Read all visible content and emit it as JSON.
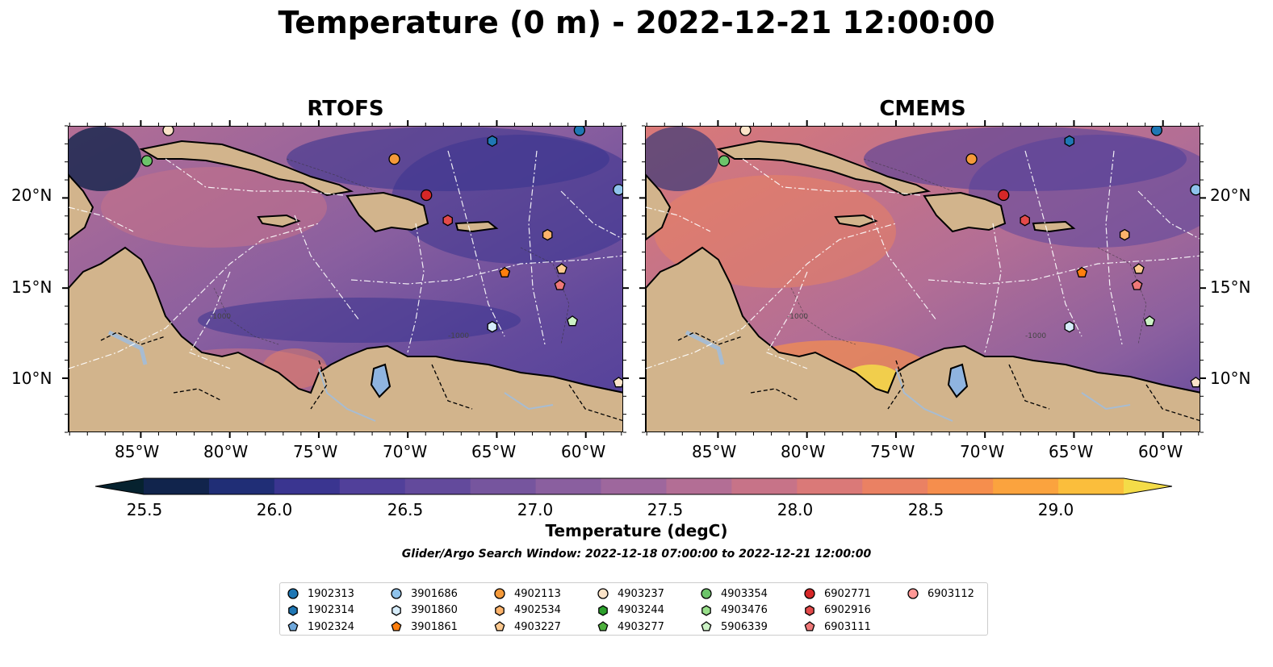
{
  "title": "Temperature (0 m) - 2022-12-21 12:00:00",
  "panels": [
    {
      "title": "RTOFS",
      "variant": "rtofs"
    },
    {
      "title": "CMEMS",
      "variant": "cmems"
    }
  ],
  "lon_ticks": [
    "85°W",
    "80°W",
    "75°W",
    "70°W",
    "65°W",
    "60°W"
  ],
  "lat_ticks": [
    "20°N",
    "15°N",
    "10°N"
  ],
  "colorbar": {
    "label": "Temperature (degC)",
    "range": [
      25.25,
      29.25
    ],
    "ticks": [
      "25.5",
      "26.0",
      "26.5",
      "27.0",
      "27.5",
      "28.0",
      "28.5",
      "29.0"
    ],
    "colors": [
      "#06222f",
      "#11244c",
      "#202e76",
      "#3a3590",
      "#51409a",
      "#634a9c",
      "#76559e",
      "#8a5f9f",
      "#9e679d",
      "#b36e95",
      "#c77388",
      "#da7978",
      "#ea8163",
      "#f68e4d",
      "#fba33e",
      "#fbbe3c",
      "#f4dc48"
    ],
    "extend": "both"
  },
  "search_window": "Glider/Argo Search Window: 2022-12-18 07:00:00 to 2022-12-21 12:00:00",
  "bathymetry_labels": [
    "-1000",
    "-1000",
    "-1000",
    "-1000"
  ],
  "legend": [
    {
      "id": "1902313",
      "color": "#1f77b4",
      "shape": "circle"
    },
    {
      "id": "1902314",
      "color": "#1f77b4",
      "shape": "hexagon"
    },
    {
      "id": "1902324",
      "color": "#6fa8dc",
      "shape": "pentagon"
    },
    {
      "id": "3901686",
      "color": "#8fc3ec",
      "shape": "circle"
    },
    {
      "id": "3901860",
      "color": "#d6ecfa",
      "shape": "hexagon"
    },
    {
      "id": "3901861",
      "color": "#ff7f0e",
      "shape": "pentagon"
    },
    {
      "id": "4902113",
      "color": "#f59a3a",
      "shape": "circle"
    },
    {
      "id": "4902534",
      "color": "#fdb36b",
      "shape": "hexagon"
    },
    {
      "id": "4903227",
      "color": "#fdc98f",
      "shape": "pentagon"
    },
    {
      "id": "4903237",
      "color": "#fbe3c8",
      "shape": "circle"
    },
    {
      "id": "4903244",
      "color": "#2ca02c",
      "shape": "hexagon"
    },
    {
      "id": "4903277",
      "color": "#4daf3d",
      "shape": "pentagon"
    },
    {
      "id": "4903354",
      "color": "#6cc46a",
      "shape": "circle"
    },
    {
      "id": "4903476",
      "color": "#98df8a",
      "shape": "hexagon"
    },
    {
      "id": "5906339",
      "color": "#ccf2c5",
      "shape": "pentagon"
    },
    {
      "id": "6902771",
      "color": "#d62728",
      "shape": "circle"
    },
    {
      "id": "6902916",
      "color": "#e34a4a",
      "shape": "hexagon"
    },
    {
      "id": "6903111",
      "color": "#ef7878",
      "shape": "pentagon"
    },
    {
      "id": "6903112",
      "color": "#ff9896",
      "shape": "circle"
    }
  ],
  "floats_on_map": [
    {
      "lon": -84.7,
      "lat": 22.1,
      "color": "#6cc46a",
      "shape": "circle"
    },
    {
      "lon": -83.5,
      "lat": 23.8,
      "color": "#fbe3c8",
      "shape": "circle"
    },
    {
      "lon": -70.8,
      "lat": 22.2,
      "color": "#f59a3a",
      "shape": "circle"
    },
    {
      "lon": -65.3,
      "lat": 23.2,
      "color": "#1f77b4",
      "shape": "hexagon"
    },
    {
      "lon": -60.4,
      "lat": 23.8,
      "color": "#1f77b4",
      "shape": "circle"
    },
    {
      "lon": -58.2,
      "lat": 20.5,
      "color": "#8fc3ec",
      "shape": "circle"
    },
    {
      "lon": -69.0,
      "lat": 20.2,
      "color": "#d62728",
      "shape": "circle"
    },
    {
      "lon": -67.8,
      "lat": 18.8,
      "color": "#e34a4a",
      "shape": "hexagon"
    },
    {
      "lon": -62.2,
      "lat": 18.0,
      "color": "#fdb36b",
      "shape": "hexagon"
    },
    {
      "lon": -64.6,
      "lat": 15.9,
      "color": "#ff7f0e",
      "shape": "pentagon"
    },
    {
      "lon": -61.4,
      "lat": 16.1,
      "color": "#fdc98f",
      "shape": "pentagon"
    },
    {
      "lon": -61.5,
      "lat": 15.2,
      "color": "#ef7878",
      "shape": "pentagon"
    },
    {
      "lon": -60.8,
      "lat": 13.2,
      "color": "#ccf2c5",
      "shape": "pentagon"
    },
    {
      "lon": -65.3,
      "lat": 12.9,
      "color": "#d6ecfa",
      "shape": "hexagon"
    },
    {
      "lon": -58.2,
      "lat": 9.8,
      "color": "#fbe3c8",
      "shape": "pentagon"
    }
  ]
}
